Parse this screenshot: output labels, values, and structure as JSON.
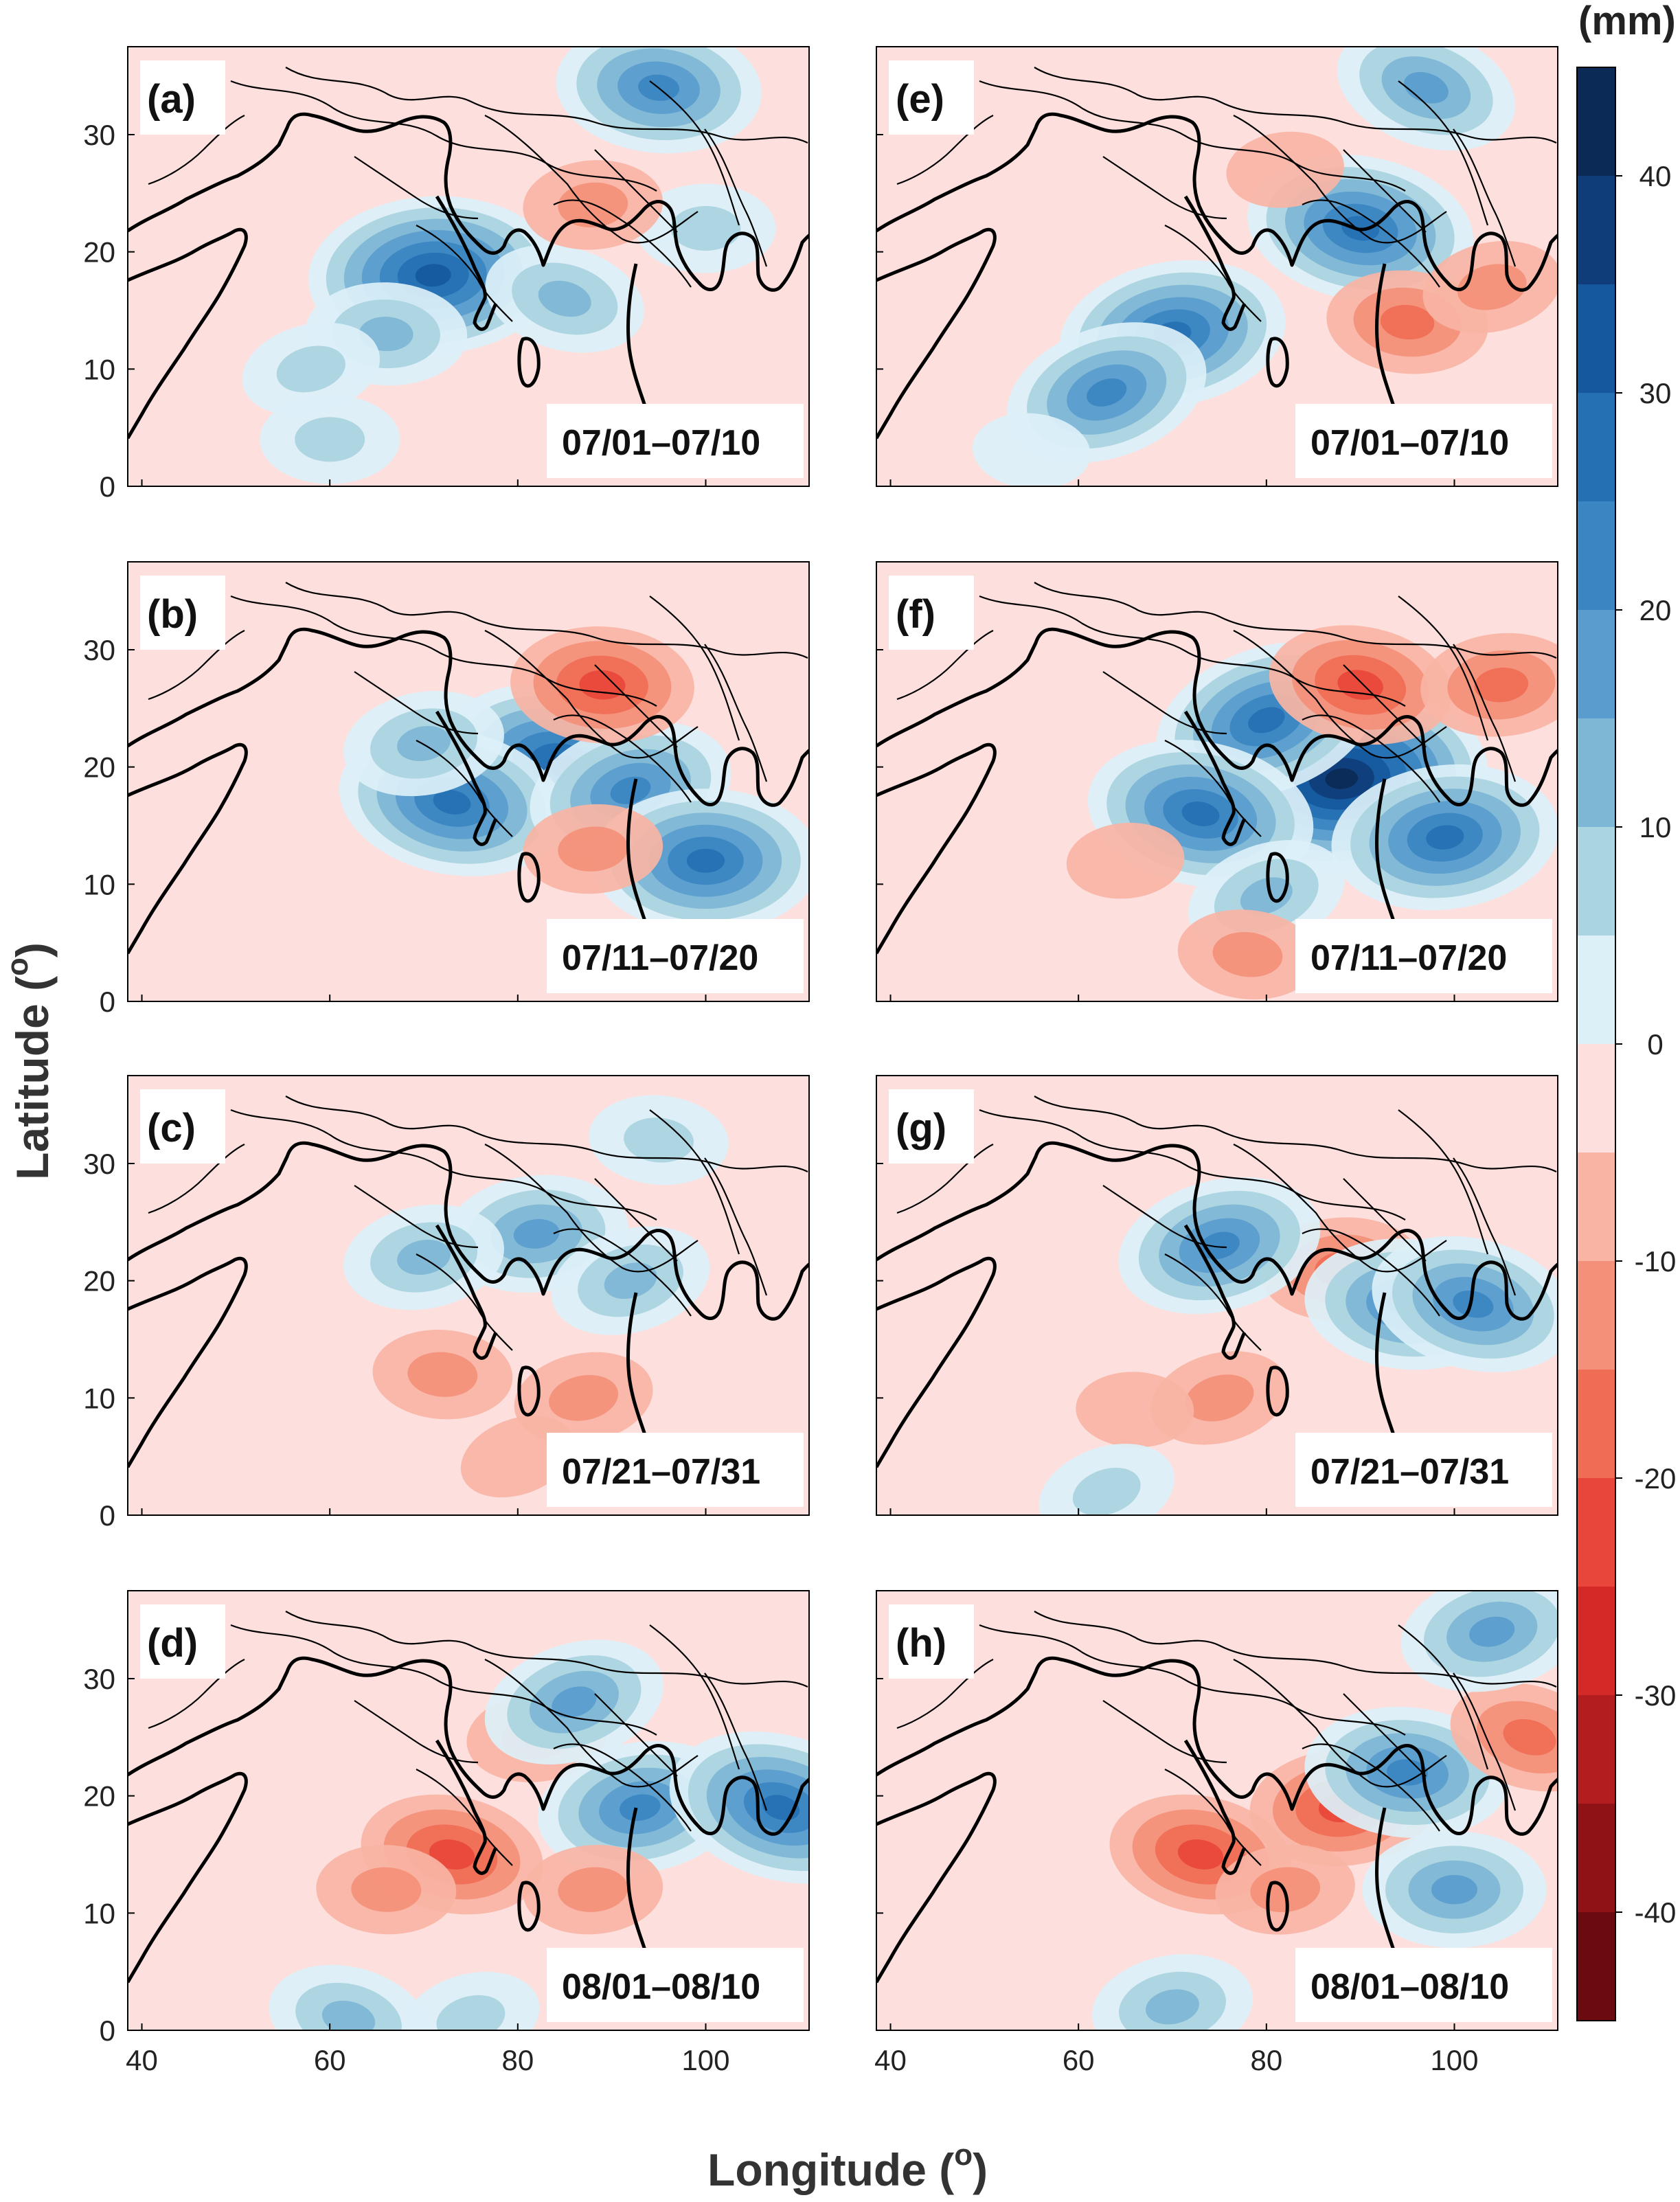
{
  "figure": {
    "unit_label": "(mm)",
    "x_axis_title": "Longitude (",
    "x_axis_sup": "o",
    "x_axis_close": ")",
    "y_axis_title": "Latitude (",
    "y_axis_sup": "o",
    "y_axis_close": ")",
    "x_ticks": [
      "40",
      "60",
      "80",
      "100"
    ],
    "y_ticks": [
      "0",
      "10",
      "20",
      "30"
    ],
    "colorbar_ticks": [
      "40",
      "30",
      "20",
      "10",
      "0",
      "-10",
      "-20",
      "-30",
      "-40"
    ]
  },
  "colorbar": {
    "levels": [
      45,
      40,
      35,
      30,
      25,
      20,
      15,
      10,
      5,
      0,
      -5,
      -10,
      -15,
      -20,
      -25,
      -30,
      -35,
      -40,
      -45
    ],
    "colors": [
      "#0b2a55",
      "#0f3d7a",
      "#15589e",
      "#2470b3",
      "#3b86c2",
      "#5a9ccd",
      "#7eb6d6",
      "#a9d4e0",
      "#dcf0f8",
      "#fde0dd",
      "#f9b4a4",
      "#f4907a",
      "#ef6c55",
      "#e8463a",
      "#d32a28",
      "#b31d20",
      "#8e1216",
      "#6b0a0f"
    ]
  },
  "panels": [
    {
      "id": "a",
      "tag": "(a)",
      "date": "07/01–07/10",
      "anomalies": [
        {
          "lon": 71,
          "lat": 18,
          "value": 35
        },
        {
          "lon": 66,
          "lat": 13,
          "value": 15
        },
        {
          "lon": 58,
          "lat": 10,
          "value": 10
        },
        {
          "lon": 85,
          "lat": 16,
          "value": 15
        },
        {
          "lon": 95,
          "lat": 34,
          "value": 25
        },
        {
          "lon": 100,
          "lat": 22,
          "value": 10
        },
        {
          "lon": 88,
          "lat": 24,
          "value": -10
        },
        {
          "lon": 60,
          "lat": 4,
          "value": 10
        }
      ]
    },
    {
      "id": "b",
      "tag": "(b)",
      "date": "07/11–07/20",
      "anomalies": [
        {
          "lon": 85,
          "lat": 20,
          "value": 35
        },
        {
          "lon": 73,
          "lat": 17,
          "value": 30
        },
        {
          "lon": 92,
          "lat": 18,
          "value": 25
        },
        {
          "lon": 100,
          "lat": 12,
          "value": 30
        },
        {
          "lon": 88,
          "lat": 13,
          "value": -10
        },
        {
          "lon": 89,
          "lat": 27,
          "value": -20
        },
        {
          "lon": 70,
          "lat": 22,
          "value": 15
        }
      ]
    },
    {
      "id": "c",
      "tag": "(c)",
      "date": "07/21–07/31",
      "anomalies": [
        {
          "lon": 72,
          "lat": 12,
          "value": -10
        },
        {
          "lon": 87,
          "lat": 10,
          "value": -10
        },
        {
          "lon": 80,
          "lat": 5,
          "value": -5
        },
        {
          "lon": 82,
          "lat": 24,
          "value": 20
        },
        {
          "lon": 92,
          "lat": 20,
          "value": 15
        },
        {
          "lon": 70,
          "lat": 22,
          "value": 15
        },
        {
          "lon": 95,
          "lat": 32,
          "value": 10
        }
      ]
    },
    {
      "id": "d",
      "tag": "(d)",
      "date": "08/01–08/10",
      "anomalies": [
        {
          "lon": 73,
          "lat": 15,
          "value": -20
        },
        {
          "lon": 66,
          "lat": 12,
          "value": -10
        },
        {
          "lon": 82,
          "lat": 25,
          "value": -10
        },
        {
          "lon": 93,
          "lat": 19,
          "value": 25
        },
        {
          "lon": 108,
          "lat": 19,
          "value": 30
        },
        {
          "lon": 86,
          "lat": 28,
          "value": 20
        },
        {
          "lon": 88,
          "lat": 12,
          "value": -10
        },
        {
          "lon": 62,
          "lat": 1,
          "value": 15
        },
        {
          "lon": 75,
          "lat": 1,
          "value": 10
        }
      ]
    },
    {
      "id": "e",
      "tag": "(e)",
      "date": "07/01–07/10",
      "anomalies": [
        {
          "lon": 70,
          "lat": 13,
          "value": 30
        },
        {
          "lon": 63,
          "lat": 8,
          "value": 25
        },
        {
          "lon": 90,
          "lat": 22,
          "value": 30
        },
        {
          "lon": 97,
          "lat": 34,
          "value": 20
        },
        {
          "lon": 95,
          "lat": 14,
          "value": -15
        },
        {
          "lon": 104,
          "lat": 17,
          "value": -10
        },
        {
          "lon": 82,
          "lat": 27,
          "value": -5
        },
        {
          "lon": 55,
          "lat": 3,
          "value": 5
        }
      ]
    },
    {
      "id": "f",
      "tag": "(f)",
      "date": "07/11–07/20",
      "anomalies": [
        {
          "lon": 88,
          "lat": 19,
          "value": 45
        },
        {
          "lon": 80,
          "lat": 24,
          "value": 30
        },
        {
          "lon": 73,
          "lat": 16,
          "value": 30
        },
        {
          "lon": 99,
          "lat": 14,
          "value": 30
        },
        {
          "lon": 80,
          "lat": 9,
          "value": 15
        },
        {
          "lon": 90,
          "lat": 27,
          "value": -20
        },
        {
          "lon": 105,
          "lat": 27,
          "value": -15
        },
        {
          "lon": 78,
          "lat": 4,
          "value": -10
        },
        {
          "lon": 65,
          "lat": 12,
          "value": -5
        }
      ]
    },
    {
      "id": "g",
      "tag": "(g)",
      "date": "07/21–07/31",
      "anomalies": [
        {
          "lon": 88,
          "lat": 21,
          "value": -15
        },
        {
          "lon": 75,
          "lat": 10,
          "value": -10
        },
        {
          "lon": 66,
          "lat": 9,
          "value": -5
        },
        {
          "lon": 95,
          "lat": 18,
          "value": 25
        },
        {
          "lon": 102,
          "lat": 18,
          "value": 25
        },
        {
          "lon": 75,
          "lat": 23,
          "value": 25
        },
        {
          "lon": 63,
          "lat": 2,
          "value": 10
        }
      ]
    },
    {
      "id": "h",
      "tag": "(h)",
      "date": "08/01–08/10",
      "anomalies": [
        {
          "lon": 88,
          "lat": 19,
          "value": -20
        },
        {
          "lon": 73,
          "lat": 15,
          "value": -20
        },
        {
          "lon": 82,
          "lat": 12,
          "value": -10
        },
        {
          "lon": 95,
          "lat": 22,
          "value": 25
        },
        {
          "lon": 100,
          "lat": 12,
          "value": 20
        },
        {
          "lon": 108,
          "lat": 25,
          "value": -15
        },
        {
          "lon": 104,
          "lat": 34,
          "value": 20
        },
        {
          "lon": 70,
          "lat": 2,
          "value": 15
        }
      ]
    }
  ]
}
